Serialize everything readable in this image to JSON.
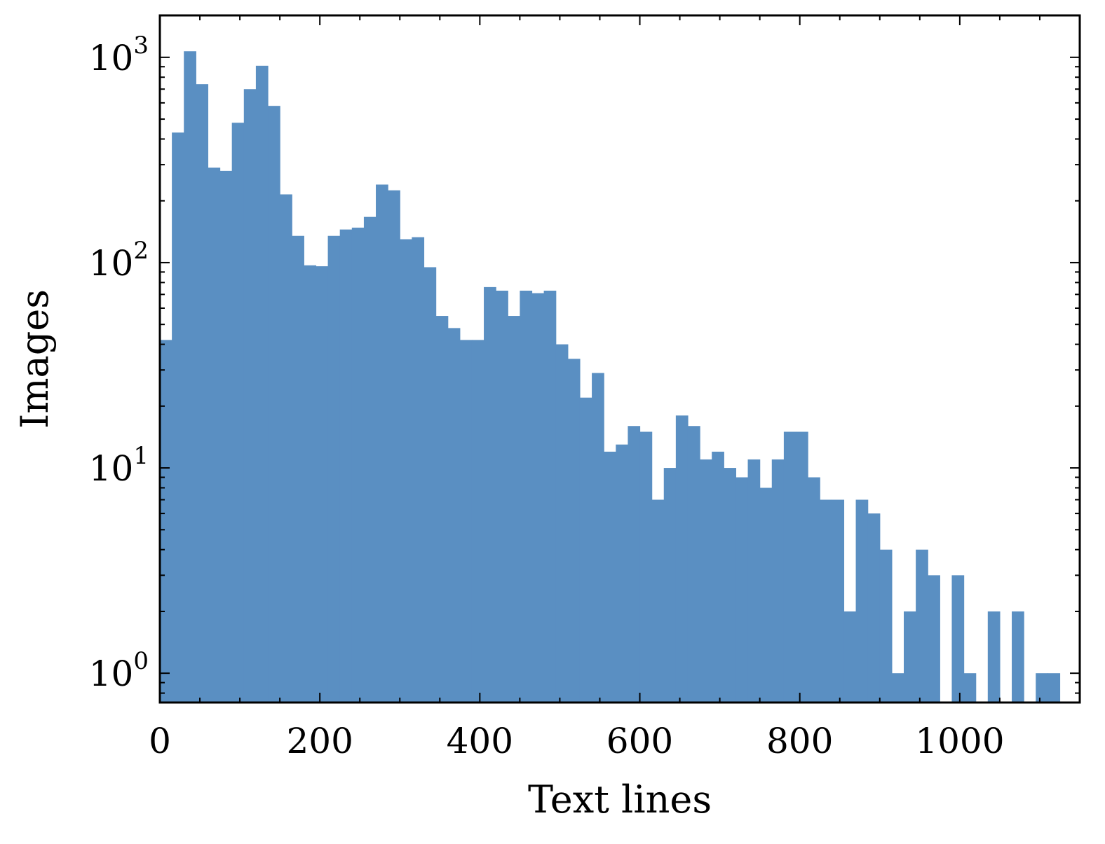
{
  "chart_data": {
    "type": "bar",
    "subtype": "histogram",
    "title": "",
    "xlabel": "Text lines",
    "ylabel": "Images",
    "x_scale": "linear",
    "y_scale": "log",
    "xlim": [
      0,
      1150
    ],
    "ylim": [
      0.72,
      1600
    ],
    "grid": false,
    "bar_color": "#5a8fc2",
    "bin_width": 15,
    "bins_start": 0,
    "values": [
      42,
      430,
      1070,
      740,
      290,
      280,
      480,
      700,
      910,
      580,
      215,
      135,
      97,
      96,
      135,
      145,
      148,
      167,
      240,
      225,
      130,
      133,
      95,
      55,
      48,
      42,
      42,
      76,
      73,
      55,
      73,
      71,
      73,
      40,
      34,
      22,
      29,
      12,
      13,
      16,
      15,
      7,
      10,
      18,
      16,
      11,
      12,
      10,
      9,
      11,
      8,
      11,
      15,
      15,
      9,
      7,
      7,
      2,
      7,
      6,
      4,
      1,
      2,
      4,
      3,
      0,
      3,
      1,
      0,
      2,
      0,
      2,
      0,
      1,
      1
    ],
    "x_ticks": [
      {
        "value": 0,
        "label": "0"
      },
      {
        "value": 200,
        "label": "200"
      },
      {
        "value": 400,
        "label": "400"
      },
      {
        "value": 600,
        "label": "600"
      },
      {
        "value": 800,
        "label": "800"
      },
      {
        "value": 1000,
        "label": "1000"
      }
    ],
    "y_ticks": [
      {
        "value": 1,
        "base": "10",
        "exp": "0"
      },
      {
        "value": 10,
        "base": "10",
        "exp": "1"
      },
      {
        "value": 100,
        "base": "10",
        "exp": "2"
      },
      {
        "value": 1000,
        "base": "10",
        "exp": "3"
      }
    ]
  }
}
